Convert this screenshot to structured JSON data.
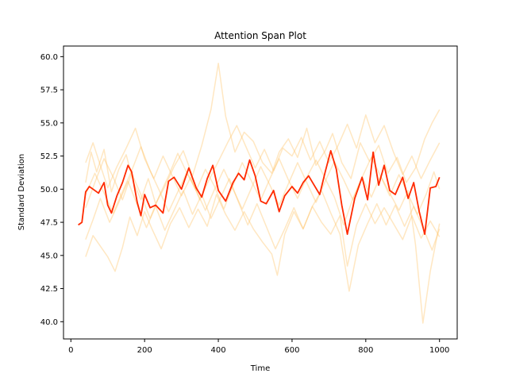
{
  "chart_data": {
    "type": "line",
    "title": "Attention Span Plot",
    "xlabel": "Time",
    "ylabel": "Standard Deviation",
    "xlim": [
      -20,
      1048
    ],
    "ylim": [
      38.7,
      60.8
    ],
    "xticks": [
      0,
      200,
      400,
      600,
      800,
      1000
    ],
    "yticks": [
      40.0,
      42.5,
      45.0,
      47.5,
      50.0,
      52.5,
      55.0,
      57.5,
      60.0
    ],
    "xtick_labels": [
      "0",
      "200",
      "400",
      "600",
      "800",
      "1000"
    ],
    "ytick_labels": [
      "40.0",
      "42.5",
      "45.0",
      "47.5",
      "50.0",
      "52.5",
      "55.0",
      "57.5",
      "60.0"
    ],
    "grid": false,
    "legend": "none",
    "colors": {
      "mean": "#ff2a00",
      "background_runs": "#ffc266"
    },
    "series": [
      {
        "role": "mean",
        "x": [
          20,
          30,
          40,
          50,
          60,
          75,
          90,
          100,
          110,
          125,
          140,
          155,
          165,
          180,
          190,
          200,
          215,
          230,
          250,
          265,
          280,
          300,
          320,
          340,
          355,
          370,
          385,
          400,
          420,
          440,
          455,
          470,
          485,
          500,
          515,
          530,
          550,
          565,
          580,
          600,
          615,
          630,
          645,
          660,
          675,
          690,
          705,
          720,
          735,
          750,
          770,
          790,
          805,
          820,
          835,
          850,
          865,
          880,
          900,
          915,
          930,
          945,
          960,
          975,
          990,
          1000
        ],
        "y": [
          47.3,
          47.5,
          49.8,
          50.2,
          50.0,
          49.7,
          50.5,
          48.8,
          48.2,
          49.5,
          50.5,
          51.8,
          51.3,
          49.0,
          48.0,
          49.6,
          48.6,
          48.8,
          48.2,
          50.6,
          50.9,
          50.0,
          51.6,
          50.1,
          49.4,
          50.8,
          51.8,
          49.9,
          49.1,
          50.5,
          51.2,
          50.7,
          52.2,
          51.0,
          49.1,
          48.9,
          49.9,
          48.3,
          49.5,
          50.2,
          49.7,
          50.5,
          51.0,
          50.3,
          49.6,
          51.3,
          52.9,
          51.5,
          48.8,
          46.6,
          49.3,
          50.9,
          49.2,
          52.8,
          50.3,
          51.8,
          49.9,
          49.6,
          50.9,
          49.3,
          50.5,
          48.3,
          46.6,
          50.1,
          50.2,
          50.9
        ]
      },
      {
        "role": "run",
        "x": [
          40,
          55,
          70,
          90,
          110,
          130,
          150,
          170,
          190,
          210,
          230,
          255,
          280,
          305,
          330,
          355,
          380,
          400,
          420,
          445,
          470,
          495,
          520,
          545,
          565,
          590,
          615,
          640,
          665,
          690,
          710,
          735,
          760,
          785,
          810,
          835,
          860,
          885,
          910,
          935,
          960,
          980,
          1000
        ],
        "y": [
          50.5,
          52.8,
          51.3,
          53.0,
          49.8,
          51.5,
          52.6,
          50.5,
          49.2,
          50.8,
          48.9,
          50.2,
          51.7,
          52.9,
          51.0,
          53.3,
          56.0,
          59.5,
          55.5,
          52.8,
          54.3,
          53.6,
          52.0,
          51.2,
          52.8,
          53.8,
          52.4,
          54.6,
          51.8,
          52.9,
          54.2,
          52.0,
          50.8,
          53.5,
          52.1,
          53.3,
          51.2,
          52.4,
          50.5,
          51.6,
          53.8,
          55.0,
          56.0
        ]
      },
      {
        "role": "run",
        "x": [
          40,
          60,
          80,
          100,
          120,
          140,
          160,
          180,
          200,
          220,
          245,
          270,
          295,
          320,
          345,
          370,
          395,
          420,
          445,
          470,
          495,
          520,
          545,
          560,
          580,
          605,
          630,
          655,
          680,
          705,
          730,
          750,
          775,
          800,
          825,
          850,
          875,
          900,
          925,
          950,
          975,
          1000
        ],
        "y": [
          44.9,
          46.5,
          45.7,
          44.9,
          43.8,
          45.6,
          47.9,
          46.5,
          48.3,
          47.0,
          45.5,
          47.4,
          48.6,
          47.1,
          48.5,
          47.2,
          49.6,
          48.1,
          46.9,
          48.3,
          47.0,
          46.0,
          45.1,
          43.5,
          46.6,
          48.3,
          47.0,
          48.7,
          47.5,
          46.6,
          48.0,
          44.2,
          47.3,
          48.9,
          47.4,
          48.6,
          47.4,
          46.2,
          48.0,
          46.3,
          47.6,
          46.4
        ]
      },
      {
        "role": "run",
        "x": [
          40,
          65,
          90,
          115,
          140,
          165,
          190,
          215,
          240,
          265,
          290,
          315,
          340,
          365,
          390,
          415,
          440,
          465,
          490,
          515,
          540,
          565,
          590,
          615,
          640,
          665,
          690,
          715,
          740,
          765,
          790,
          815,
          840,
          865,
          890,
          915,
          935,
          955,
          975,
          1000
        ],
        "y": [
          48.6,
          50.5,
          52.3,
          50.9,
          49.2,
          51.2,
          49.6,
          47.8,
          49.5,
          51.0,
          52.7,
          51.2,
          49.9,
          51.5,
          50.2,
          48.5,
          50.3,
          52.0,
          50.6,
          49.2,
          50.8,
          52.3,
          50.7,
          49.3,
          50.9,
          52.2,
          50.8,
          49.4,
          47.3,
          49.3,
          50.9,
          49.4,
          51.0,
          49.7,
          48.4,
          49.9,
          45.8,
          39.9,
          43.8,
          47.4
        ]
      },
      {
        "role": "run",
        "x": [
          40,
          60,
          80,
          100,
          125,
          150,
          175,
          200,
          225,
          250,
          275,
          300,
          325,
          350,
          375,
          400,
          425,
          450,
          475,
          500,
          525,
          550,
          575,
          600,
          625,
          650,
          675,
          700,
          725,
          750,
          775,
          800,
          825,
          850,
          875,
          900,
          925,
          950,
          975,
          1000
        ],
        "y": [
          52.0,
          53.5,
          51.8,
          50.1,
          51.7,
          53.1,
          54.6,
          52.3,
          50.8,
          52.5,
          51.0,
          49.5,
          50.9,
          49.2,
          50.7,
          52.1,
          53.5,
          54.8,
          53.2,
          51.6,
          53.0,
          51.4,
          53.1,
          52.5,
          53.9,
          52.2,
          53.6,
          52.0,
          53.3,
          54.9,
          53.1,
          55.6,
          53.5,
          54.8,
          52.8,
          51.1,
          52.5,
          50.8,
          52.2,
          53.5
        ]
      },
      {
        "role": "run",
        "x": [
          40,
          60,
          80,
          105,
          130,
          155,
          180,
          205,
          230,
          255,
          280,
          305,
          330,
          355,
          380,
          405,
          430,
          455,
          480,
          505,
          530,
          555,
          580,
          605,
          630,
          655,
          680,
          705,
          730,
          755,
          780,
          805,
          830,
          855,
          880,
          905,
          930,
          955,
          980,
          1000
        ],
        "y": [
          46.2,
          47.7,
          49.3,
          47.5,
          49.0,
          50.6,
          48.8,
          47.1,
          48.7,
          46.9,
          48.4,
          49.9,
          48.1,
          49.6,
          47.8,
          49.3,
          50.8,
          49.0,
          47.3,
          48.9,
          47.2,
          45.5,
          47.0,
          48.6,
          47.0,
          48.7,
          49.9,
          48.2,
          46.6,
          42.3,
          45.8,
          47.4,
          48.9,
          47.3,
          48.8,
          47.2,
          48.7,
          47.1,
          45.4,
          47.0
        ]
      },
      {
        "role": "run",
        "x": [
          40,
          65,
          90,
          115,
          140,
          165,
          190,
          215,
          240,
          265,
          290,
          315,
          340,
          365,
          390,
          415,
          440,
          465,
          490,
          515,
          540,
          565,
          590,
          615,
          640,
          665,
          690,
          715,
          740,
          765,
          790,
          815,
          840,
          865,
          890,
          915,
          940,
          965,
          985,
          1000
        ],
        "y": [
          49.6,
          51.2,
          49.7,
          48.2,
          49.8,
          51.4,
          53.2,
          51.4,
          49.9,
          48.3,
          49.8,
          51.3,
          49.9,
          48.4,
          50.0,
          51.5,
          50.0,
          48.5,
          50.1,
          51.7,
          50.3,
          48.8,
          50.4,
          52.0,
          50.5,
          49.0,
          50.6,
          52.1,
          50.7,
          49.2,
          50.9,
          52.4,
          51.0,
          49.5,
          51.1,
          49.6,
          48.1,
          49.7,
          51.3,
          50.0
        ]
      }
    ]
  }
}
